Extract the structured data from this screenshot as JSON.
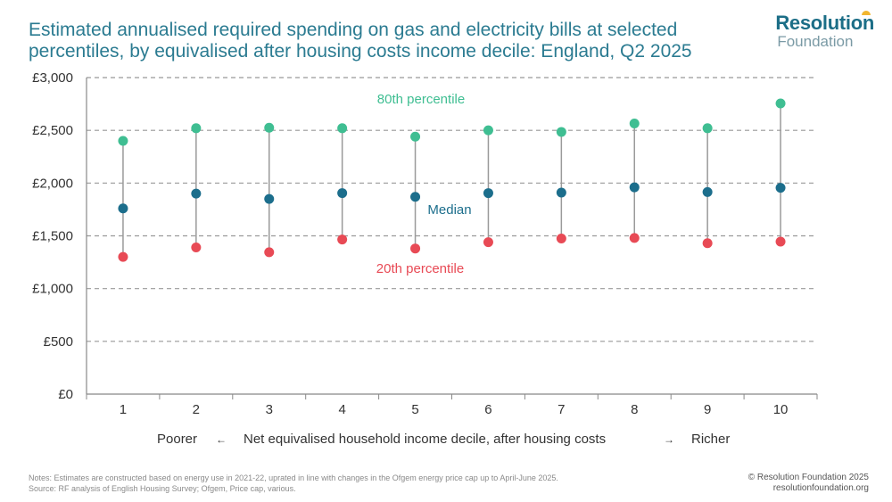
{
  "title": "Estimated annualised required spending on gas and electricity bills at selected percentiles, by equivalised after housing costs income decile: England, Q2 2025",
  "logo": {
    "line1": "Resolution",
    "line2": "Foundation"
  },
  "colors": {
    "p80": "#3fbe92",
    "median": "#1c6e8c",
    "p20": "#e84a55",
    "connector": "#9a9a9a",
    "grid": "#999999",
    "axis": "#888888",
    "text": "#333333"
  },
  "chart_data": {
    "type": "scatter",
    "categories": [
      "1",
      "2",
      "3",
      "4",
      "5",
      "6",
      "7",
      "8",
      "9",
      "10"
    ],
    "series": [
      {
        "name": "80th percentile",
        "values": [
          2400,
          2520,
          2525,
          2520,
          2440,
          2500,
          2485,
          2565,
          2520,
          2755
        ]
      },
      {
        "name": "Median",
        "values": [
          1760,
          1900,
          1850,
          1905,
          1870,
          1905,
          1910,
          1960,
          1915,
          1955
        ]
      },
      {
        "name": "20th percentile",
        "values": [
          1300,
          1390,
          1345,
          1465,
          1380,
          1440,
          1475,
          1480,
          1430,
          1445
        ]
      }
    ],
    "y_ticks": [
      "£0",
      "£500",
      "£1,000",
      "£1,500",
      "£2,000",
      "£2,500",
      "£3,000"
    ],
    "ylim": [
      0,
      3000
    ],
    "xlabel": {
      "left": "Poorer",
      "left_arrow": "←",
      "center": "Net equivalised household income decile, after housing costs",
      "right_arrow": "→",
      "right": "Richer"
    },
    "grid": true
  },
  "notes": {
    "line1": "Notes: Estimates are constructed based on energy use in 2021-22, uprated in line with changes in the Ofgem energy price cap up to April-June 2025.",
    "line2": "Source: RF analysis of English Housing Survey; Ofgem, Price cap, various."
  },
  "credit": {
    "line1": "© Resolution Foundation 2025",
    "line2": "resolutionfoundation.org"
  }
}
